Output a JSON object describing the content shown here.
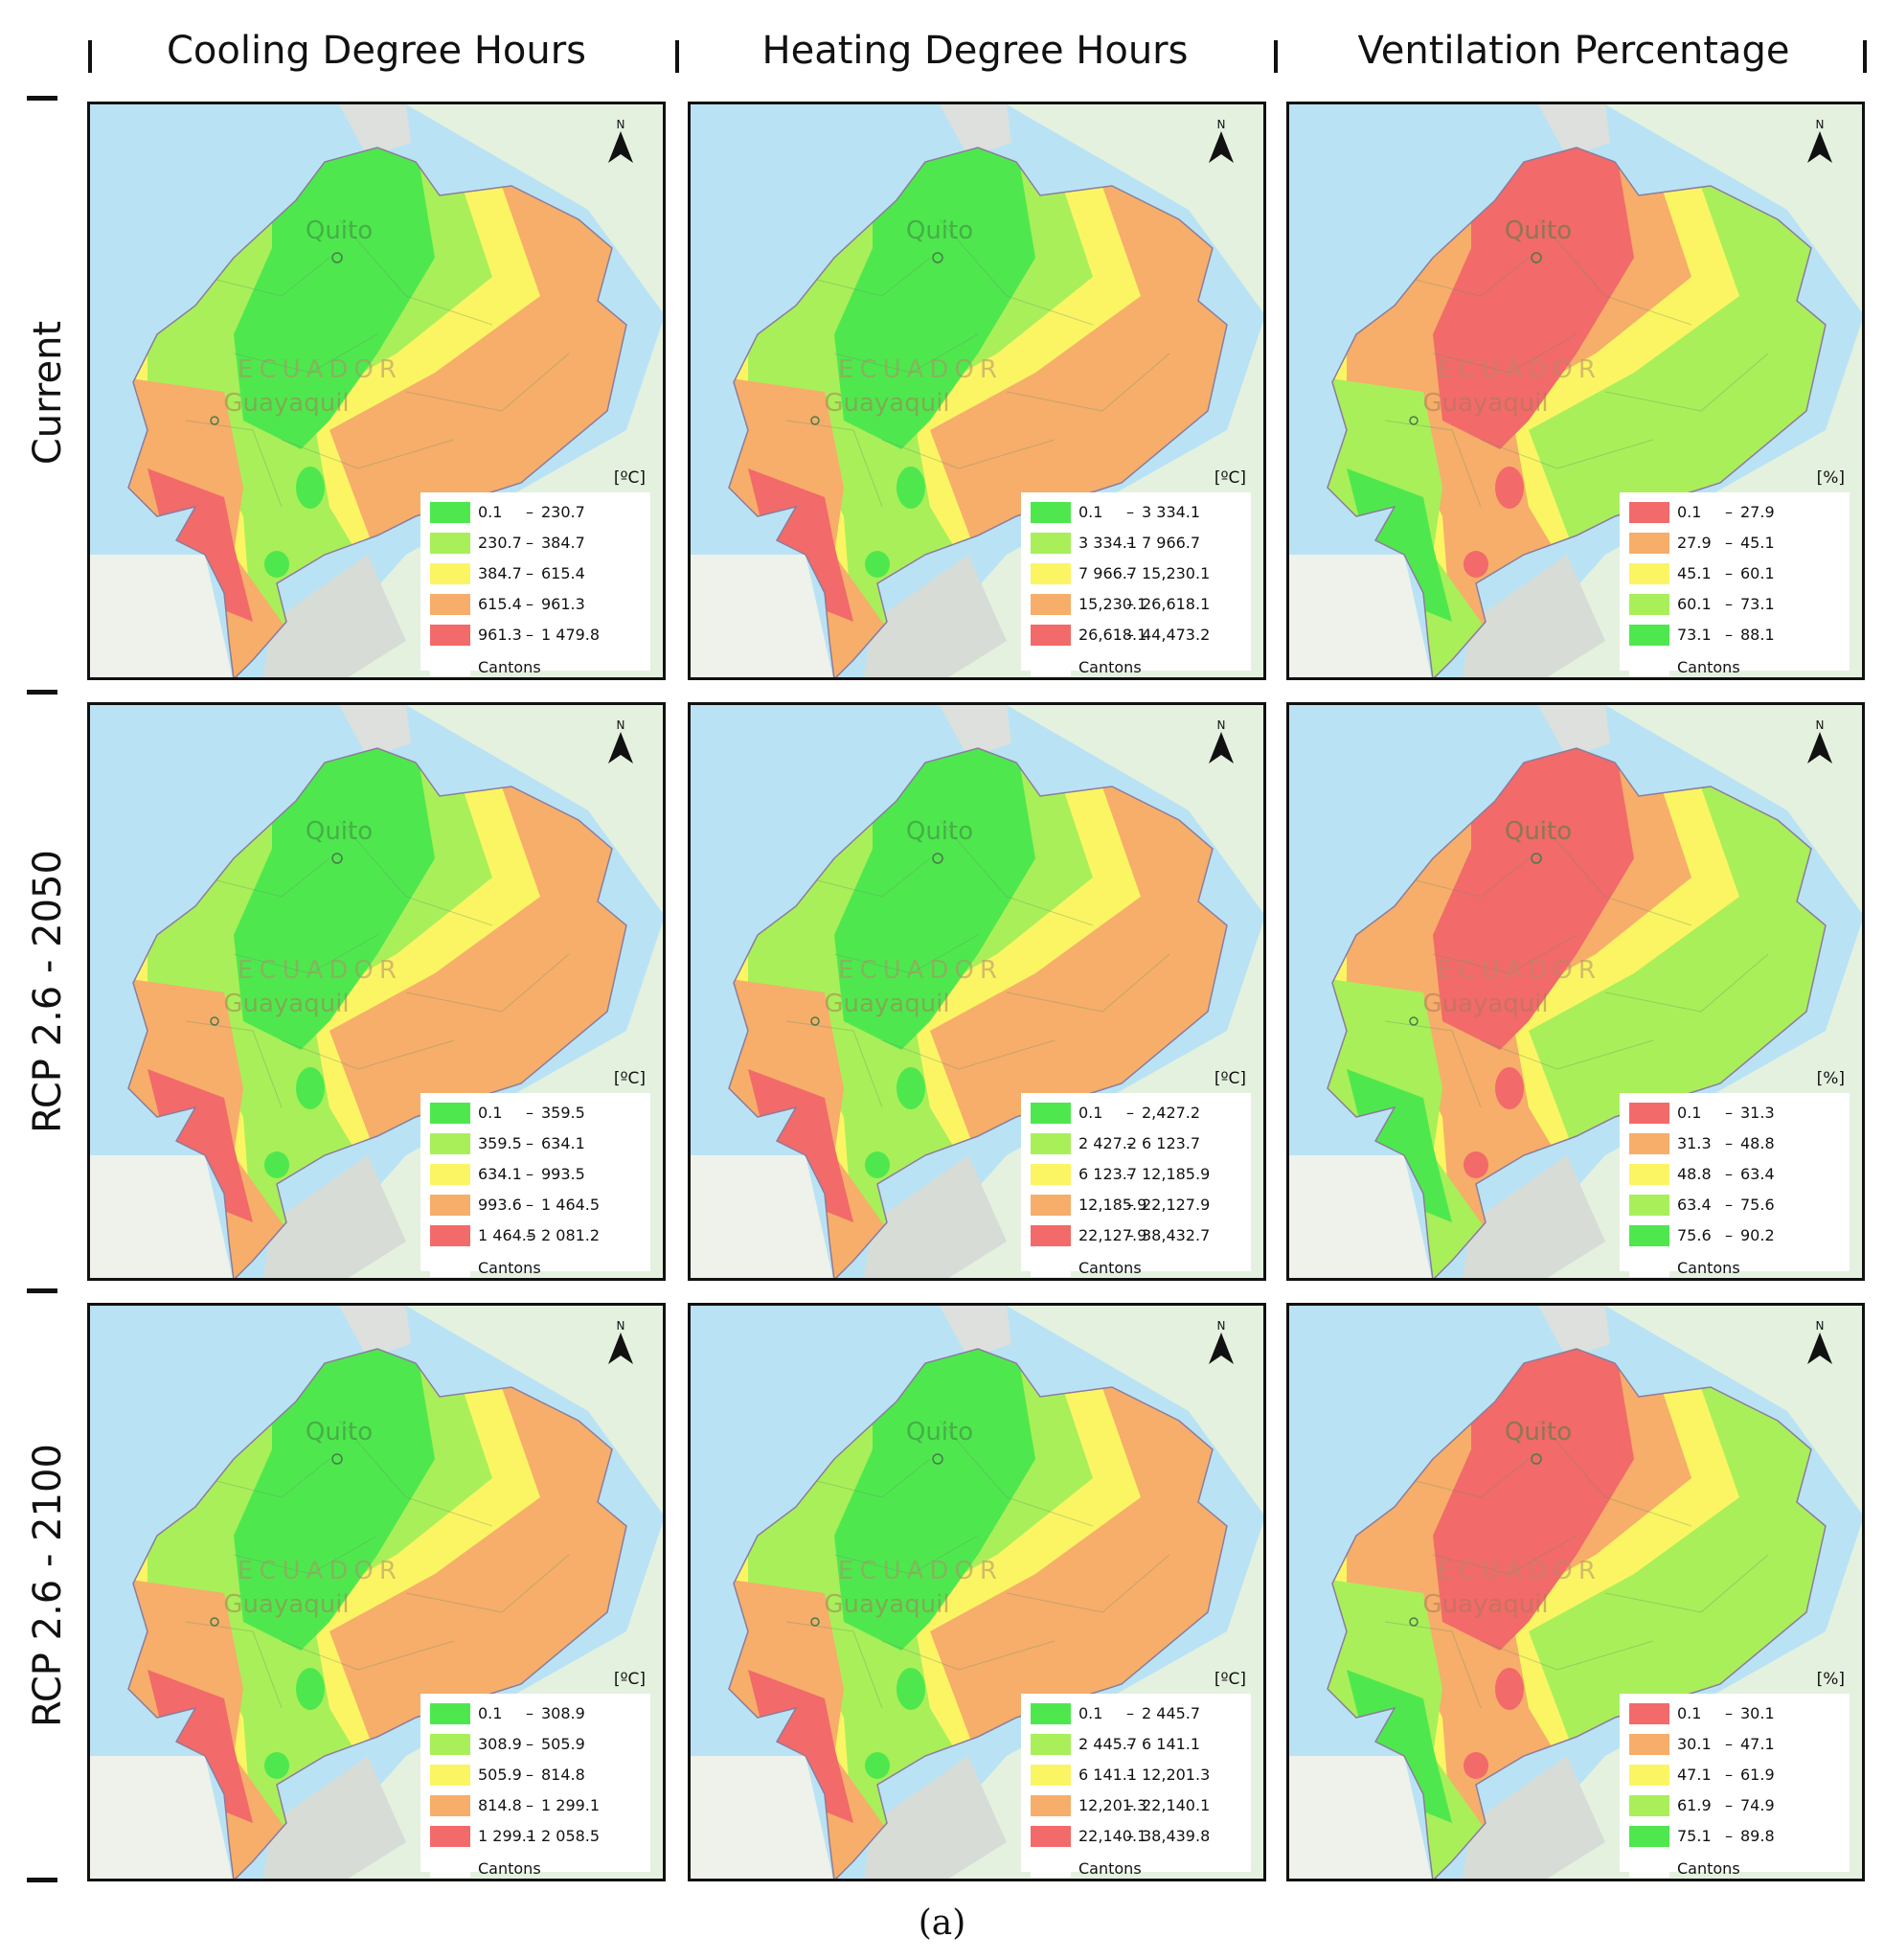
{
  "columns": [
    "Cooling Degree Hours",
    "Heating Degree Hours",
    "Ventilation Percentage"
  ],
  "rows": [
    "Current",
    "RCP 2.6 - 2050",
    "RCP 2.6 - 2100"
  ],
  "map_labels": {
    "capital": "Quito",
    "city": "Guayaquil",
    "country": "ECUADOR",
    "north": "N"
  },
  "class_colors": {
    "ascending": [
      "#4ee84e",
      "#a9ef5a",
      "#fbf564",
      "#f6ae6a",
      "#f26a6a"
    ],
    "descending": [
      "#f26a6a",
      "#f6ae6a",
      "#fbf564",
      "#a9ef5a",
      "#4ee84e"
    ],
    "cantons": "#ffffff"
  },
  "panels": [
    [
      {
        "unit": "[ºC]",
        "ramp": "ascending",
        "classes": [
          [
            "0.1",
            "230.7"
          ],
          [
            "230.7",
            "384.7"
          ],
          [
            "384.7",
            "615.4"
          ],
          [
            "615.4",
            "961.3"
          ],
          [
            "961.3",
            "1 479.8"
          ]
        ],
        "cantons": "Cantons"
      },
      {
        "unit": "[ºC]",
        "ramp": "ascending",
        "classes": [
          [
            "0.1",
            "3 334.1"
          ],
          [
            "3 334.1",
            "7 966.7"
          ],
          [
            "7 966.7",
            "15,230.1"
          ],
          [
            "15,230.1",
            "26,618.1"
          ],
          [
            "26,618.1",
            "44,473.2"
          ]
        ],
        "cantons": "Cantons"
      },
      {
        "unit": "[%]",
        "ramp": "descending",
        "classes": [
          [
            "0.1",
            "27.9"
          ],
          [
            "27.9",
            "45.1"
          ],
          [
            "45.1",
            "60.1"
          ],
          [
            "60.1",
            "73.1"
          ],
          [
            "73.1",
            "88.1"
          ]
        ],
        "cantons": "Cantons"
      }
    ],
    [
      {
        "unit": "[ºC]",
        "ramp": "ascending",
        "classes": [
          [
            "0.1",
            "359.5"
          ],
          [
            "359.5",
            "634.1"
          ],
          [
            "634.1",
            "993.5"
          ],
          [
            "993.6",
            "1 464.5"
          ],
          [
            "1 464.5",
            "2 081.2"
          ]
        ],
        "cantons": "Cantons"
      },
      {
        "unit": "[ºC]",
        "ramp": "ascending",
        "classes": [
          [
            "0.1",
            "2,427.2"
          ],
          [
            "2 427.2",
            "6 123.7"
          ],
          [
            "6 123.7",
            "12,185.9"
          ],
          [
            "12,185.9",
            "22,127.9"
          ],
          [
            "22,127.9",
            "38,432.7"
          ]
        ],
        "cantons": "Cantons"
      },
      {
        "unit": "[%]",
        "ramp": "descending",
        "classes": [
          [
            "0.1",
            "31.3"
          ],
          [
            "31.3",
            "48.8"
          ],
          [
            "48.8",
            "63.4"
          ],
          [
            "63.4",
            "75.6"
          ],
          [
            "75.6",
            "90.2"
          ]
        ],
        "cantons": "Cantons"
      }
    ],
    [
      {
        "unit": "[ºC]",
        "ramp": "ascending",
        "classes": [
          [
            "0.1",
            "308.9"
          ],
          [
            "308.9",
            "505.9"
          ],
          [
            "505.9",
            "814.8"
          ],
          [
            "814.8",
            "1 299.1"
          ],
          [
            "1 299.1",
            "2 058.5"
          ]
        ],
        "cantons": "Cantons"
      },
      {
        "unit": "[ºC]",
        "ramp": "ascending",
        "classes": [
          [
            "0.1",
            "2 445.7"
          ],
          [
            "2 445.7",
            "6 141.1"
          ],
          [
            "6 141.1",
            "12,201.3"
          ],
          [
            "12,201.3",
            "22,140.1"
          ],
          [
            "22,140.1",
            "38,439.8"
          ]
        ],
        "cantons": "Cantons"
      },
      {
        "unit": "[%]",
        "ramp": "descending",
        "classes": [
          [
            "0.1",
            "30.1"
          ],
          [
            "30.1",
            "47.1"
          ],
          [
            "47.1",
            "61.9"
          ],
          [
            "61.9",
            "74.9"
          ],
          [
            "75.1",
            "89.8"
          ]
        ],
        "cantons": "Cantons"
      }
    ]
  ],
  "caption": "(a)"
}
